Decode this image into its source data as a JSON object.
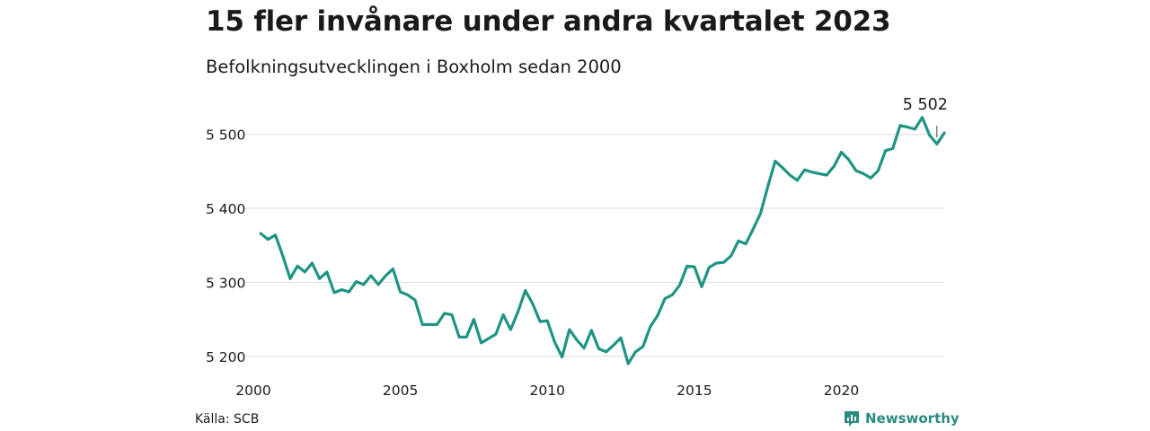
{
  "title": "15 fler invånare under andra kvartalet 2023",
  "subtitle": "Befolkningsutvecklingen i Boxholm sedan 2000",
  "source": "Källa: SCB",
  "brand": {
    "name": "Newsworthy",
    "color": "#2a8a80"
  },
  "colors": {
    "line": "#1f9483",
    "grid": "#dddddd",
    "text": "#1a1a1a"
  },
  "chart_data": {
    "type": "line",
    "title": "15 fler invånare under andra kvartalet 2023",
    "subtitle": "Befolkningsutvecklingen i Boxholm sedan 2000",
    "xlabel": "",
    "ylabel": "",
    "ylim": [
      5190,
      5530
    ],
    "xlim": [
      2000,
      2023.5
    ],
    "x_ticks": [
      {
        "value": 2000,
        "label": "2000"
      },
      {
        "value": 2005,
        "label": "2005"
      },
      {
        "value": 2010,
        "label": "2010"
      },
      {
        "value": 2015,
        "label": "2015"
      },
      {
        "value": 2020,
        "label": "2020"
      }
    ],
    "y_ticks": [
      {
        "value": 5200,
        "label": "5 200"
      },
      {
        "value": 5300,
        "label": "5 300"
      },
      {
        "value": 5400,
        "label": "5 400"
      },
      {
        "value": 5500,
        "label": "5 500"
      }
    ],
    "grid": "horizontal",
    "annotation": {
      "text": "5 502",
      "x": 2023.25,
      "y": 5502
    },
    "series": [
      {
        "x_start": 2000.25,
        "x_step": 0.25,
        "values": [
          5366,
          5358,
          5364,
          5336,
          5305,
          5322,
          5314,
          5326,
          5305,
          5314,
          5286,
          5290,
          5287,
          5301,
          5297,
          5309,
          5297,
          5309,
          5318,
          5287,
          5283,
          5276,
          5243,
          5243,
          5243,
          5258,
          5256,
          5226,
          5226,
          5250,
          5218,
          5224,
          5230,
          5256,
          5236,
          5260,
          5289,
          5271,
          5247,
          5248,
          5219,
          5199,
          5236,
          5222,
          5211,
          5235,
          5210,
          5206,
          5215,
          5225,
          5190,
          5206,
          5213,
          5240,
          5255,
          5278,
          5283,
          5296,
          5322,
          5321,
          5294,
          5320,
          5326,
          5327,
          5336,
          5356,
          5352,
          5372,
          5393,
          5430,
          5464,
          5455,
          5445,
          5438,
          5452,
          5449,
          5447,
          5445,
          5457,
          5476,
          5466,
          5451,
          5447,
          5441,
          5451,
          5478,
          5481,
          5512,
          5510,
          5507,
          5523,
          5499,
          5487,
          5502
        ]
      }
    ]
  }
}
